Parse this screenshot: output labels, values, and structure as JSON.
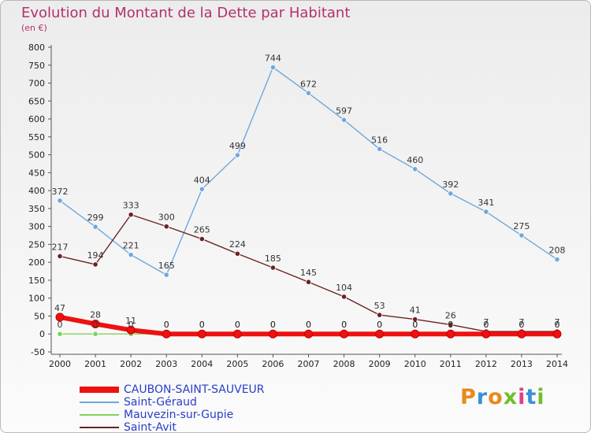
{
  "title": "Evolution du Montant de la Dette par Habitant",
  "unit": "(en €)",
  "logo": {
    "text": "Proxiti",
    "letters": [
      "P",
      "r",
      "o",
      "x",
      "i",
      "t",
      "i"
    ],
    "colors": [
      "#e88a1a",
      "#3a8fd8",
      "#e88a1a",
      "#6fbf2a",
      "#e04080",
      "#3a8fd8",
      "#6fbf2a"
    ]
  },
  "chart_data": {
    "type": "line",
    "x": [
      2000,
      2001,
      2002,
      2003,
      2004,
      2005,
      2006,
      2007,
      2008,
      2009,
      2010,
      2011,
      2012,
      2013,
      2014
    ],
    "ylim": [
      -50,
      800
    ],
    "yticks": [
      -50,
      0,
      50,
      100,
      150,
      200,
      250,
      300,
      350,
      400,
      450,
      500,
      550,
      600,
      650,
      700,
      750,
      800
    ],
    "grid": false,
    "legend_position": "bottom-left",
    "series": [
      {
        "name": "Saint-Géraud",
        "color": "#6fa8dc",
        "values": [
          372,
          299,
          221,
          165,
          404,
          499,
          744,
          672,
          597,
          516,
          460,
          392,
          341,
          275,
          208
        ],
        "labels": [
          "372",
          "299",
          "221",
          "165",
          "404",
          "499",
          "744",
          "672",
          "597",
          "516",
          "460",
          "392",
          "341",
          "275",
          "208"
        ]
      },
      {
        "name": "Saint-Avit",
        "color": "#6b2222",
        "values": [
          217,
          194,
          333,
          300,
          265,
          224,
          185,
          145,
          104,
          53,
          41,
          26,
          7,
          7,
          7
        ],
        "labels": [
          "217",
          "194",
          "333",
          "300",
          "265",
          "224",
          "185",
          "145",
          "104",
          "53",
          "41",
          "26",
          "7",
          "7",
          "7"
        ]
      },
      {
        "name": "Mauvezin-sur-Gupie",
        "color": "#7ed35a",
        "values": [
          0,
          0,
          0,
          0,
          0,
          0,
          0,
          0,
          0,
          0,
          0,
          0,
          0,
          0,
          0
        ],
        "labels": [
          "0",
          "0",
          "0",
          "0",
          "0",
          "0",
          "0",
          "0",
          "0",
          "0",
          "0",
          "0",
          "0",
          "0",
          "0"
        ]
      },
      {
        "name": "CAUBON-SAINT-SAUVEUR",
        "color": "#ee1111",
        "values": [
          47,
          28,
          11,
          0,
          0,
          0,
          0,
          0,
          0,
          0,
          0,
          0,
          0,
          0,
          0
        ],
        "labels": [
          "47",
          "28",
          "11",
          "0",
          "0",
          "0",
          "0",
          "0",
          "0",
          "0",
          "0",
          "0",
          "0",
          "0",
          "0"
        ]
      }
    ],
    "legend": [
      {
        "name": "CAUBON-SAINT-SAUVEUR",
        "color": "#ee1111"
      },
      {
        "name": "Saint-Géraud",
        "color": "#6fa8dc"
      },
      {
        "name": "Mauvezin-sur-Gupie",
        "color": "#7ed35a"
      },
      {
        "name": "Saint-Avit",
        "color": "#6b2222"
      }
    ]
  }
}
